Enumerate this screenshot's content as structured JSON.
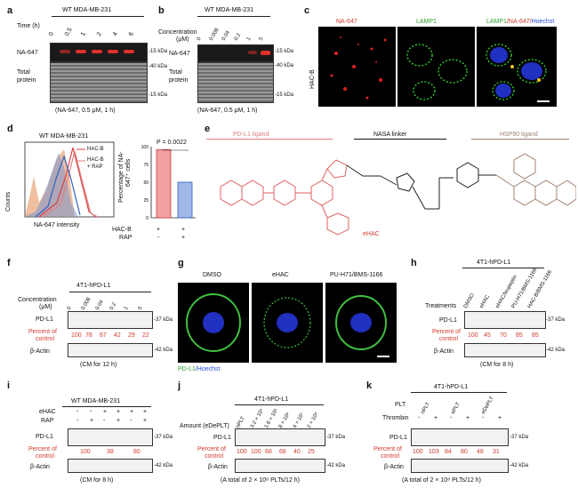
{
  "panels": {
    "a": {
      "label": "a",
      "title": "WT MDA-MB-231",
      "time_label": "Time (h)",
      "time_values": [
        "0",
        "0.5",
        "1",
        "2",
        "4",
        "6"
      ],
      "row1": "NA-647",
      "row2_line1": "Total",
      "row2_line2": "protein",
      "mw1": "-15 kDa",
      "mw2": "-40 kDa",
      "mw3": "-15 kDa",
      "caption": "(NA-647, 0.5 μM, 1 h)"
    },
    "b": {
      "label": "b",
      "title": "WT MDA-MB-231",
      "conc_label_line1": "Concentration",
      "conc_label_line2": "(μM)",
      "conc_values": [
        "0",
        "0.008",
        "0.04",
        "0.2",
        "1",
        "5"
      ],
      "row1": "NA-647",
      "row2_line1": "Total",
      "row2_line2": "protein",
      "mw1": "-15 kDa",
      "mw2": "-40 kDa",
      "mw3": "-15 kDa",
      "caption": "(NA-647, 0.5 μM, 1 h)"
    },
    "c": {
      "label": "c",
      "col1": "NA-647",
      "col2": "LAMP1",
      "col3_a": "LAMP1",
      "col3_b": "/NA-647/",
      "col3_c": "Hoechst",
      "row_label": "HAC-B"
    },
    "d": {
      "label": "d",
      "title": "WT MDA-MB-231",
      "legend": [
        "HAC-B",
        "HAC-B",
        "+ RAP"
      ],
      "y_axis": "Counts",
      "x_axis": "NA-647 intensity",
      "bar_ylabel_line1": "Percentage of NA-",
      "bar_ylabel_line2": "647⁺ cells",
      "pvalue": "P = 0.0022",
      "bar_ticks": [
        "0",
        "25",
        "50",
        "75",
        "100"
      ],
      "row_haC": "HAC-B",
      "row_rap": "RAP",
      "hac_signs": [
        "+",
        "+"
      ],
      "rap_signs": [
        "-",
        "+"
      ]
    },
    "e": {
      "label": "e",
      "ligand1": "PD-L1 ligand",
      "linker": "NASA linker",
      "ligand2": "HSP90 ligand",
      "compound": "eHAC"
    },
    "f": {
      "label": "f",
      "title": "4T1-hPD-L1",
      "conc_label": "Concentration",
      "conc_unit": "(μM)",
      "conc_values": [
        "0",
        "0.008",
        "0.04",
        "0.2",
        "1",
        "5"
      ],
      "row1": "PD-L1",
      "pct_line1": "Percent of",
      "pct_line2": "control",
      "pct_values": [
        "100",
        "78",
        "67",
        "42",
        "29",
        "22"
      ],
      "row3": "β-Actin",
      "mw1": "-37 kDa",
      "mw2": "-42 kDa",
      "caption": "(CM for 12 h)"
    },
    "g": {
      "label": "g",
      "col1": "DMSO",
      "col2": "eHAC",
      "col3": "PU-H71/BMS-1166",
      "legend_a": "PD-L1",
      "legend_b": "/Hoechst"
    },
    "h": {
      "label": "h",
      "title": "4T1-hPD-L1",
      "treat_label": "Treatments",
      "treat_values": [
        "DMSO",
        "eHAC",
        "eHAC/leupeptin",
        "PU-H71/BMS-1166",
        "HAC-B/BMS-1166"
      ],
      "row1": "PD-L1",
      "pct_line1": "Percent of",
      "pct_line2": "control",
      "pct_values": [
        "100",
        "45",
        "70",
        "85",
        "85"
      ],
      "row3": "β-Actin",
      "mw1": "-37 kDa",
      "mw2": "-42 kDa",
      "caption": "(CM for 8 h)"
    },
    "i": {
      "label": "i",
      "title": "WT MDA-MB-231",
      "row_ehac": "eHAC",
      "row_rap": "RAP",
      "ehac_signs": [
        "-",
        "-",
        "+",
        "+",
        "+",
        "+"
      ],
      "rap_signs": [
        "-",
        "+",
        "-",
        "+",
        "-",
        "+"
      ],
      "row1": "PD-L1",
      "pct_line1": "Percent of",
      "pct_line2": "control",
      "pct_values": [
        "100",
        "38",
        "80"
      ],
      "row3": "β-Actin",
      "mw1": "-37 kDa",
      "mw2": "-42 kDa",
      "caption": "(CM for 8 h)"
    },
    "j": {
      "label": "j",
      "title": "4T1-hPD-L1",
      "amount_label": "Amount (eDePLT)",
      "amount_values": [
        "nPLT",
        "3.2 × 10⁵",
        "1.6 × 10⁶",
        "8 × 10⁶",
        "4 × 10⁷",
        "2 × 10⁸"
      ],
      "row1": "PD-L1",
      "pct_line1": "Percent of",
      "pct_line2": "control",
      "pct_values": [
        "100",
        "100",
        "68",
        "68",
        "40",
        "25"
      ],
      "row3": "β-Actin",
      "mw1": "-37 kDa",
      "mw2": "-42 kDa",
      "caption": "(A total of 2 × 10⁸ PLTs/12 h)"
    },
    "k": {
      "label": "k",
      "title": "4T1-hPD-L1",
      "row_plt": "PLT",
      "row_thrombin": "Thrombin",
      "plt_values": [
        "nPLT",
        "ePLT",
        "eDePLT"
      ],
      "thrombin_signs": [
        "-",
        "+",
        "-",
        "+",
        "-",
        "+"
      ],
      "row1": "PD-L1",
      "pct_line1": "Percent of",
      "pct_line2": "control",
      "pct_values": [
        "100",
        "103",
        "84",
        "80",
        "48",
        "31"
      ],
      "row3": "β-Actin",
      "mw1": "-37 kDa",
      "mw2": "-42 kDa",
      "caption": "(A total of 2 × 10⁸ PLTs/12 h)"
    }
  }
}
